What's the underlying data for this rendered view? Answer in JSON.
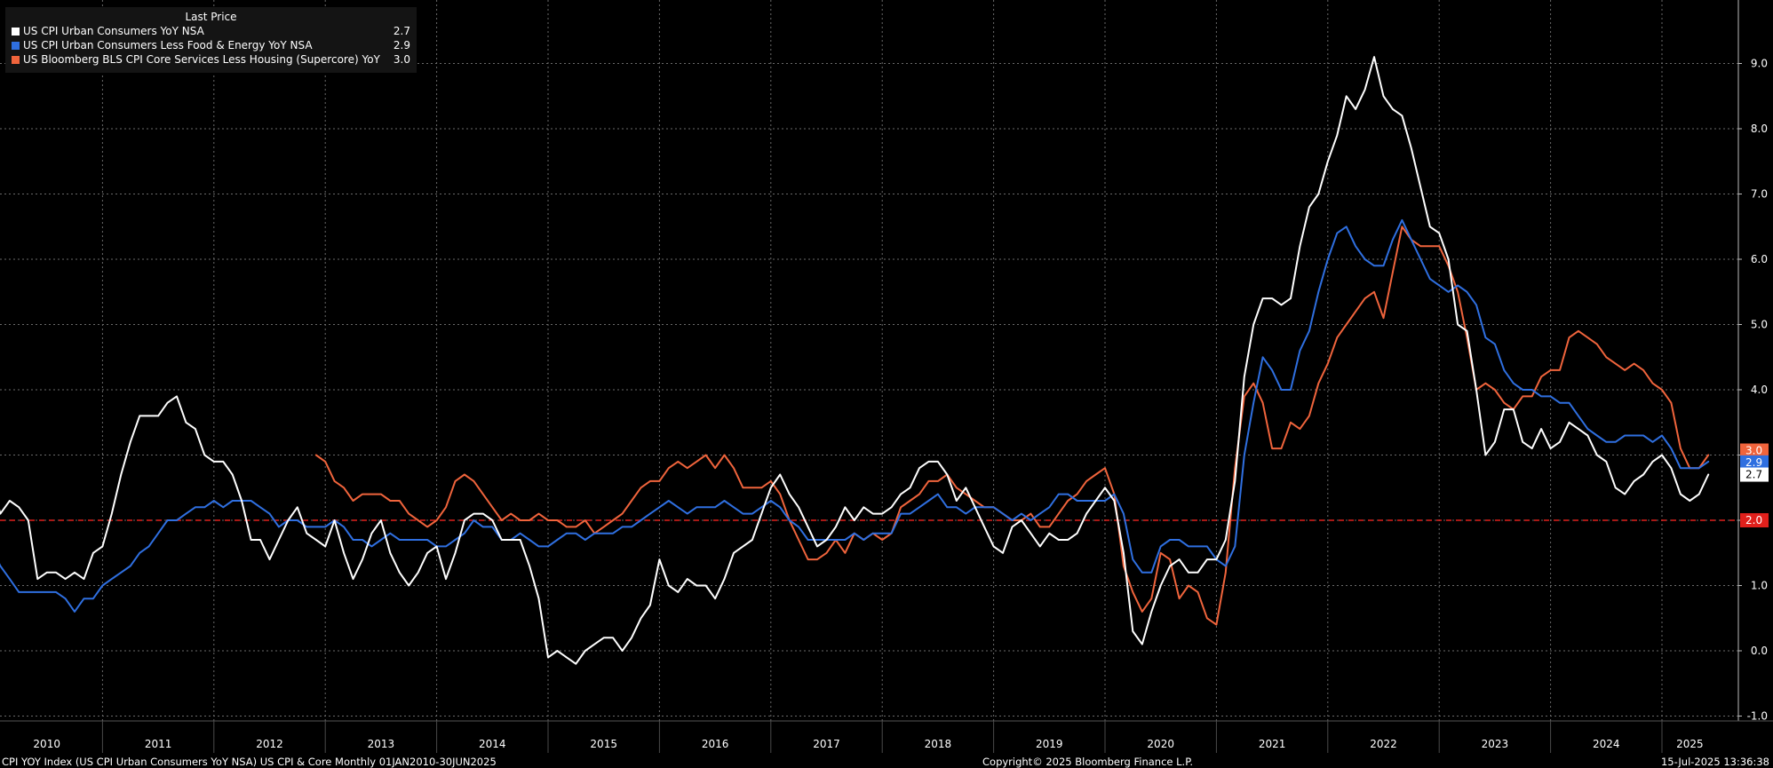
{
  "legend": {
    "header": "Last Price",
    "items": [
      {
        "name": "US CPI Urban Consumers YoY NSA",
        "value": "2.7",
        "color": "#ffffff"
      },
      {
        "name": "US CPI Urban Consumers Less Food & Energy YoY NSA",
        "value": "2.9",
        "color": "#2f6fe0"
      },
      {
        "name": "US Bloomberg BLS CPI Core Services Less Housing (Supercore) YoY",
        "value": "3.0",
        "color": "#f0643c"
      }
    ]
  },
  "footer": {
    "left": "CPI YOY Index (US CPI Urban Consumers YoY NSA) US CPI & Core  Monthly 01JAN2010-30JUN2025",
    "center": "Copyright© 2025 Bloomberg Finance L.P.",
    "right": "15-Jul-2025 13:36:38"
  },
  "chart_data": {
    "type": "line",
    "x_start": "2010-01",
    "x_end": "2025-06",
    "xlabels": [
      "2010",
      "2011",
      "2012",
      "2013",
      "2014",
      "2015",
      "2016",
      "2017",
      "2018",
      "2019",
      "2020",
      "2021",
      "2022",
      "2023",
      "2024",
      "2025"
    ],
    "ylim": [
      -1.0,
      9.5
    ],
    "yticks": [
      -1.0,
      0.0,
      1.0,
      2.0,
      3.0,
      4.0,
      5.0,
      6.0,
      7.0,
      8.0,
      9.0
    ],
    "ytick_labels": [
      "-1.0",
      "0.0",
      "1.0",
      "2.0",
      "3.0",
      "4.0",
      "5.0",
      "6.0",
      "7.0",
      "8.0",
      "9.0"
    ],
    "grid": true,
    "legend_position": "top-left",
    "reference_line": {
      "value": 2.0,
      "label": "2.0",
      "color": "#e0201c"
    },
    "last_value_labels": [
      "2.7",
      "2.9",
      "3.0"
    ],
    "series": [
      {
        "name": "US CPI Urban Consumers YoY NSA",
        "color": "#ffffff",
        "start": "2010-01",
        "values": [
          2.6,
          2.1,
          2.3,
          2.2,
          2.0,
          1.1,
          1.2,
          1.2,
          1.1,
          1.2,
          1.1,
          1.5,
          1.6,
          2.1,
          2.7,
          3.2,
          3.6,
          3.6,
          3.6,
          3.8,
          3.9,
          3.5,
          3.4,
          3.0,
          2.9,
          2.9,
          2.7,
          2.3,
          1.7,
          1.7,
          1.4,
          1.7,
          2.0,
          2.2,
          1.8,
          1.7,
          1.6,
          2.0,
          1.5,
          1.1,
          1.4,
          1.8,
          2.0,
          1.5,
          1.2,
          1.0,
          1.2,
          1.5,
          1.6,
          1.1,
          1.5,
          2.0,
          2.1,
          2.1,
          2.0,
          1.7,
          1.7,
          1.7,
          1.3,
          0.8,
          -0.1,
          0.0,
          -0.1,
          -0.2,
          0.0,
          0.1,
          0.2,
          0.2,
          0.0,
          0.2,
          0.5,
          0.7,
          1.4,
          1.0,
          0.9,
          1.1,
          1.0,
          1.0,
          0.8,
          1.1,
          1.5,
          1.6,
          1.7,
          2.1,
          2.5,
          2.7,
          2.4,
          2.2,
          1.9,
          1.6,
          1.7,
          1.9,
          2.2,
          2.0,
          2.2,
          2.1,
          2.1,
          2.2,
          2.4,
          2.5,
          2.8,
          2.9,
          2.9,
          2.7,
          2.3,
          2.5,
          2.2,
          1.9,
          1.6,
          1.5,
          1.9,
          2.0,
          1.8,
          1.6,
          1.8,
          1.7,
          1.7,
          1.8,
          2.1,
          2.3,
          2.5,
          2.3,
          1.5,
          0.3,
          0.1,
          0.6,
          1.0,
          1.3,
          1.4,
          1.2,
          1.2,
          1.4,
          1.4,
          1.7,
          2.6,
          4.2,
          5.0,
          5.4,
          5.4,
          5.3,
          5.4,
          6.2,
          6.8,
          7.0,
          7.5,
          7.9,
          8.5,
          8.3,
          8.6,
          9.1,
          8.5,
          8.3,
          8.2,
          7.7,
          7.1,
          6.5,
          6.4,
          6.0,
          5.0,
          4.9,
          4.0,
          3.0,
          3.2,
          3.7,
          3.7,
          3.2,
          3.1,
          3.4,
          3.1,
          3.2,
          3.5,
          3.4,
          3.3,
          3.0,
          2.9,
          2.5,
          2.4,
          2.6,
          2.7,
          2.9,
          3.0,
          2.8,
          2.4,
          2.3,
          2.4,
          2.7
        ]
      },
      {
        "name": "US CPI Urban Consumers Less Food & Energy YoY NSA",
        "color": "#2f6fe0",
        "start": "2010-01",
        "values": [
          1.6,
          1.3,
          1.1,
          0.9,
          0.9,
          0.9,
          0.9,
          0.9,
          0.8,
          0.6,
          0.8,
          0.8,
          1.0,
          1.1,
          1.2,
          1.3,
          1.5,
          1.6,
          1.8,
          2.0,
          2.0,
          2.1,
          2.2,
          2.2,
          2.3,
          2.2,
          2.3,
          2.3,
          2.3,
          2.2,
          2.1,
          1.9,
          2.0,
          2.0,
          1.9,
          1.9,
          1.9,
          2.0,
          1.9,
          1.7,
          1.7,
          1.6,
          1.7,
          1.8,
          1.7,
          1.7,
          1.7,
          1.7,
          1.6,
          1.6,
          1.7,
          1.8,
          2.0,
          1.9,
          1.9,
          1.7,
          1.7,
          1.8,
          1.7,
          1.6,
          1.6,
          1.7,
          1.8,
          1.8,
          1.7,
          1.8,
          1.8,
          1.8,
          1.9,
          1.9,
          2.0,
          2.1,
          2.2,
          2.3,
          2.2,
          2.1,
          2.2,
          2.2,
          2.2,
          2.3,
          2.2,
          2.1,
          2.1,
          2.2,
          2.3,
          2.2,
          2.0,
          1.9,
          1.7,
          1.7,
          1.7,
          1.7,
          1.7,
          1.8,
          1.7,
          1.8,
          1.8,
          1.8,
          2.1,
          2.1,
          2.2,
          2.3,
          2.4,
          2.2,
          2.2,
          2.1,
          2.2,
          2.2,
          2.2,
          2.1,
          2.0,
          2.1,
          2.0,
          2.1,
          2.2,
          2.4,
          2.4,
          2.3,
          2.3,
          2.3,
          2.3,
          2.4,
          2.1,
          1.4,
          1.2,
          1.2,
          1.6,
          1.7,
          1.7,
          1.6,
          1.6,
          1.6,
          1.4,
          1.3,
          1.6,
          3.0,
          3.8,
          4.5,
          4.3,
          4.0,
          4.0,
          4.6,
          4.9,
          5.5,
          6.0,
          6.4,
          6.5,
          6.2,
          6.0,
          5.9,
          5.9,
          6.3,
          6.6,
          6.3,
          6.0,
          5.7,
          5.6,
          5.5,
          5.6,
          5.5,
          5.3,
          4.8,
          4.7,
          4.3,
          4.1,
          4.0,
          4.0,
          3.9,
          3.9,
          3.8,
          3.8,
          3.6,
          3.4,
          3.3,
          3.2,
          3.2,
          3.3,
          3.3,
          3.3,
          3.2,
          3.3,
          3.1,
          2.8,
          2.8,
          2.8,
          2.9
        ]
      },
      {
        "name": "US Bloomberg BLS CPI Core Services Less Housing (Supercore) YoY",
        "color": "#f0643c",
        "start": "2012-12",
        "values": [
          3.0,
          2.9,
          2.6,
          2.5,
          2.3,
          2.4,
          2.4,
          2.4,
          2.3,
          2.3,
          2.1,
          2.0,
          1.9,
          2.0,
          2.2,
          2.6,
          2.7,
          2.6,
          2.4,
          2.2,
          2.0,
          2.1,
          2.0,
          2.0,
          2.1,
          2.0,
          2.0,
          1.9,
          1.9,
          2.0,
          1.8,
          1.9,
          2.0,
          2.1,
          2.3,
          2.5,
          2.6,
          2.6,
          2.8,
          2.9,
          2.8,
          2.9,
          3.0,
          2.8,
          3.0,
          2.8,
          2.5,
          2.5,
          2.5,
          2.6,
          2.4,
          2.0,
          1.7,
          1.4,
          1.4,
          1.5,
          1.7,
          1.5,
          1.8,
          1.7,
          1.8,
          1.7,
          1.8,
          2.2,
          2.3,
          2.4,
          2.6,
          2.6,
          2.7,
          2.5,
          2.4,
          2.3,
          2.2,
          2.2,
          2.1,
          2.0,
          2.0,
          2.1,
          1.9,
          1.9,
          2.1,
          2.3,
          2.4,
          2.6,
          2.7,
          2.8,
          2.4,
          1.3,
          0.9,
          0.6,
          0.8,
          1.5,
          1.4,
          0.8,
          1.0,
          0.9,
          0.5,
          0.4,
          1.2,
          2.8,
          3.9,
          4.1,
          3.8,
          3.1,
          3.1,
          3.5,
          3.4,
          3.6,
          4.1,
          4.4,
          4.8,
          5.0,
          5.2,
          5.4,
          5.5,
          5.1,
          5.8,
          6.5,
          6.3,
          6.2,
          6.2,
          6.2,
          5.9,
          5.5,
          4.8,
          4.0,
          4.1,
          4.0,
          3.8,
          3.7,
          3.9,
          3.9,
          4.2,
          4.3,
          4.3,
          4.8,
          4.9,
          4.8,
          4.7,
          4.5,
          4.4,
          4.3,
          4.4,
          4.3,
          4.1,
          4.0,
          3.8,
          3.1,
          2.8,
          2.8,
          3.0
        ]
      }
    ]
  }
}
